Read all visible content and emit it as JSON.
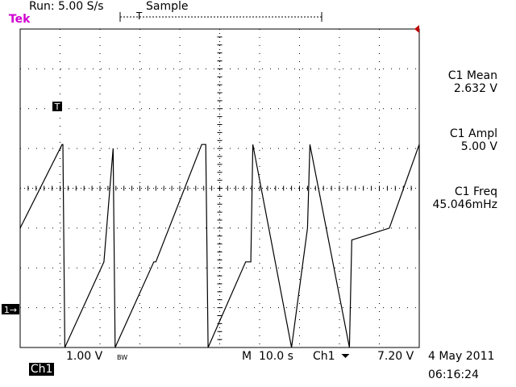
{
  "header": {
    "brand": "Tek",
    "run_status": "Run: 5.00 S/s",
    "acq_mode": "Sample",
    "trigger_marker": "T"
  },
  "measurements": [
    {
      "name": "C1 Mean",
      "value": "2.632 V"
    },
    {
      "name": "C1 Ampl",
      "value": "5.00 V"
    },
    {
      "name": "C1 Freq",
      "value": "45.046mHz"
    }
  ],
  "markers": {
    "trigger_label": "T",
    "channel_ground": "1→"
  },
  "footer": {
    "channel": "Ch1",
    "volts_div": "1.00 V",
    "bw_flag": "BW",
    "timebase": "M  10.0 s",
    "trigger_source": "Ch1",
    "trigger_slope": "⏷",
    "trigger_level": "7.20 V",
    "date": "4 May 2011",
    "time": "06:16:24"
  },
  "colors": {
    "brand": "#d000d0",
    "trace": "#000000",
    "trigger_pointer": "#c00000"
  },
  "chart_data": {
    "type": "line",
    "title": "",
    "xlabel": "",
    "ylabel": "",
    "x_unit": "s",
    "y_unit": "V",
    "xlim": [
      0,
      100
    ],
    "ylim": [
      -3,
      5
    ],
    "grid": true,
    "series": [
      {
        "x": [
          0,
          10.5,
          10.7,
          11.2,
          21.0,
          23.3,
          23.8,
          33.5,
          34.0,
          45.5,
          46.5,
          47.1,
          56.5,
          57.8,
          58.3,
          68.0,
          72.0,
          72.6,
          82.5,
          83.1,
          92.5,
          100.0,
          100.0
        ],
        "y": [
          0,
          2.1,
          2.1,
          -3.0,
          -0.85,
          2.0,
          -3.0,
          -0.85,
          -0.85,
          2.1,
          2.1,
          -3.0,
          -0.85,
          -0.85,
          2.1,
          -3.0,
          0,
          2.1,
          -3.0,
          -0.3,
          0,
          2.1,
          -0.3
        ]
      }
    ]
  }
}
